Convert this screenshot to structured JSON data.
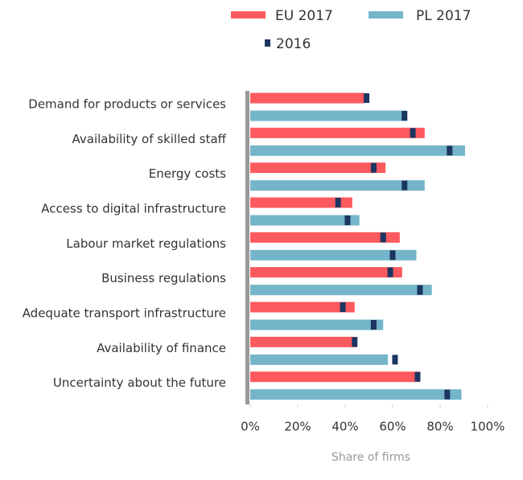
{
  "chart_data": {
    "type": "bar",
    "orientation": "horizontal",
    "categories": [
      "Demand for products or services",
      "Availability of skilled staff",
      "Energy costs",
      "Access to digital infrastructure",
      "Labour market regulations",
      "Business regulations",
      "Adequate transport infrastructure",
      "Availability of finance",
      "Uncertainty about the future"
    ],
    "series": [
      {
        "name": "EU 2017",
        "color": "#fd5a5f",
        "values": [
          48,
          73.5,
          57,
          43,
          63,
          64,
          44,
          45,
          71.5
        ],
        "values_2016": [
          49,
          68.5,
          52,
          37,
          56,
          59,
          39,
          44,
          70.5
        ]
      },
      {
        "name": "PL 2017",
        "color": "#75b5c9",
        "values": [
          66,
          90.5,
          73.5,
          46,
          70,
          76.5,
          56,
          58,
          89
        ],
        "values_2016": [
          65,
          84,
          65,
          41,
          60,
          71.5,
          52,
          61,
          83
        ]
      }
    ],
    "marker": {
      "name": "2016",
      "color": "#1b3660"
    },
    "xlabel": "Share of firms",
    "xlim": [
      0,
      100
    ],
    "xticks": [
      {
        "value": 0,
        "label": "0%"
      },
      {
        "value": 20,
        "label": "20%"
      },
      {
        "value": 40,
        "label": "40%"
      },
      {
        "value": 60,
        "label": "60%"
      },
      {
        "value": 80,
        "label": "80%"
      },
      {
        "value": 100,
        "label": "100%"
      }
    ]
  }
}
